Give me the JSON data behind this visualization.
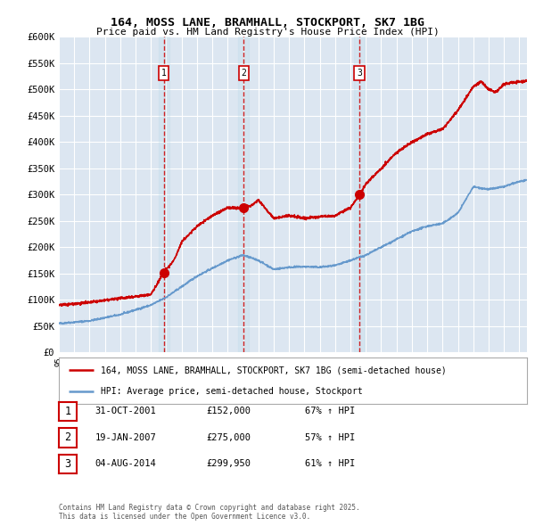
{
  "title1": "164, MOSS LANE, BRAMHALL, STOCKPORT, SK7 1BG",
  "title2": "Price paid vs. HM Land Registry's House Price Index (HPI)",
  "plot_bg_color": "#dce6f1",
  "red_line_color": "#cc0000",
  "blue_line_color": "#6699cc",
  "sale_marker_color": "#cc0000",
  "vline_color": "#cc0000",
  "grid_color": "#ffffff",
  "ylim": [
    0,
    600000
  ],
  "yticks": [
    0,
    50000,
    100000,
    150000,
    200000,
    250000,
    300000,
    350000,
    400000,
    450000,
    500000,
    550000,
    600000
  ],
  "ytick_labels": [
    "£0",
    "£50K",
    "£100K",
    "£150K",
    "£200K",
    "£250K",
    "£300K",
    "£350K",
    "£400K",
    "£450K",
    "£500K",
    "£550K",
    "£600K"
  ],
  "sale1": {
    "year": 2001.83,
    "price": 152000,
    "label": "1",
    "date": "31-OCT-2001",
    "pct": "67% ↑ HPI"
  },
  "sale2": {
    "year": 2007.05,
    "price": 275000,
    "label": "2",
    "date": "19-JAN-2007",
    "pct": "57% ↑ HPI"
  },
  "sale3": {
    "year": 2014.59,
    "price": 299950,
    "label": "3",
    "date": "04-AUG-2014",
    "pct": "61% ↑ HPI"
  },
  "legend_line1": "164, MOSS LANE, BRAMHALL, STOCKPORT, SK7 1BG (semi-detached house)",
  "legend_line2": "HPI: Average price, semi-detached house, Stockport",
  "table_rows": [
    [
      "1",
      "31-OCT-2001",
      "£152,000",
      "67% ↑ HPI"
    ],
    [
      "2",
      "19-JAN-2007",
      "£275,000",
      "57% ↑ HPI"
    ],
    [
      "3",
      "04-AUG-2014",
      "£299,950",
      "61% ↑ HPI"
    ]
  ],
  "footer": "Contains HM Land Registry data © Crown copyright and database right 2025.\nThis data is licensed under the Open Government Licence v3.0.",
  "xmin": 1995,
  "xmax": 2025.5,
  "hpi_anchors_x": [
    1995,
    1997,
    1999,
    2001,
    2002,
    2003,
    2004,
    2005,
    2006,
    2007,
    2008,
    2009,
    2010,
    2011,
    2012,
    2013,
    2014,
    2015,
    2016,
    2017,
    2018,
    2019,
    2020,
    2021,
    2022,
    2023,
    2024,
    2025,
    2025.5
  ],
  "hpi_anchors_y": [
    55000,
    60000,
    72000,
    90000,
    105000,
    125000,
    145000,
    160000,
    175000,
    185000,
    175000,
    158000,
    162000,
    163000,
    162000,
    165000,
    175000,
    185000,
    200000,
    215000,
    230000,
    240000,
    245000,
    265000,
    315000,
    310000,
    315000,
    325000,
    327000
  ],
  "prop_anchors_x": [
    1995,
    1997,
    1999,
    2001,
    2001.83,
    2002.5,
    2003,
    2004,
    2005,
    2006,
    2007.05,
    2007.5,
    2008,
    2009,
    2010,
    2011,
    2012,
    2013,
    2014,
    2014.59,
    2015,
    2016,
    2017,
    2018,
    2019,
    2020,
    2021,
    2022,
    2022.5,
    2023,
    2023.5,
    2024,
    2025,
    2025.5
  ],
  "prop_anchors_y": [
    90000,
    95000,
    103000,
    110000,
    152000,
    175000,
    210000,
    240000,
    260000,
    275000,
    275000,
    278000,
    290000,
    255000,
    260000,
    255000,
    258000,
    260000,
    275000,
    299950,
    320000,
    350000,
    380000,
    400000,
    415000,
    425000,
    460000,
    505000,
    515000,
    500000,
    495000,
    510000,
    515000,
    516000
  ]
}
